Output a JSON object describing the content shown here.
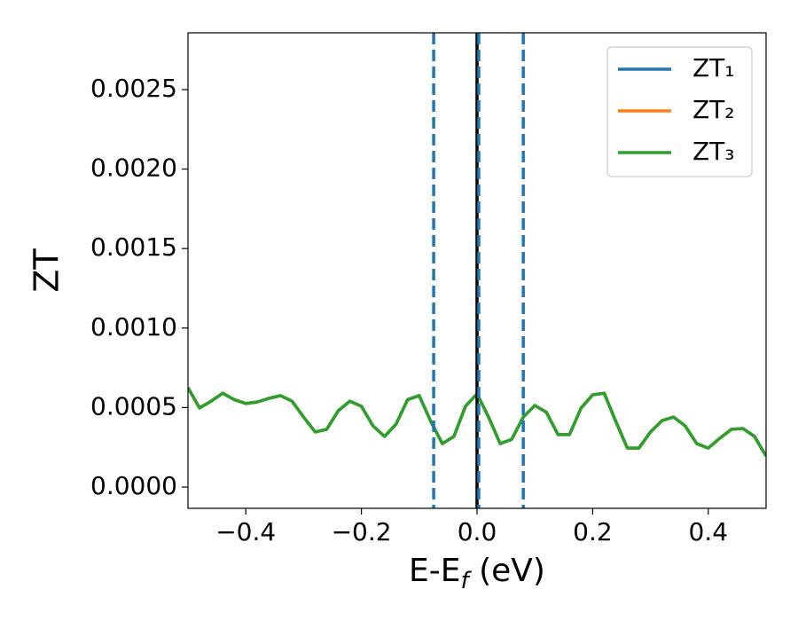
{
  "chart_data": {
    "type": "line",
    "xlabel": [
      "E-E",
      "f",
      " (eV)"
    ],
    "ylabel": "ZT",
    "x": [
      -0.5,
      -0.48,
      -0.46,
      -0.44,
      -0.42,
      -0.4,
      -0.38,
      -0.36,
      -0.34,
      -0.32,
      -0.3,
      -0.28,
      -0.26,
      -0.24,
      -0.22,
      -0.2,
      -0.18,
      -0.16,
      -0.14,
      -0.12,
      -0.1,
      -0.08,
      -0.06,
      -0.04,
      -0.02,
      0,
      0.02,
      0.04,
      0.06,
      0.08,
      0.1,
      0.12,
      0.14,
      0.16,
      0.18,
      0.2,
      0.22,
      0.24,
      0.26,
      0.28,
      0.3,
      0.32,
      0.34,
      0.36,
      0.38,
      0.4,
      0.42,
      0.44,
      0.46,
      0.48,
      0.5
    ],
    "series": [
      {
        "name": "ZT₁",
        "color": "#1f77b4",
        "values": [
          0.000625,
          0.000497,
          0.00054,
          0.00059,
          0.00055,
          0.000525,
          0.000535,
          0.000558,
          0.000575,
          0.00054,
          0.00044,
          0.000346,
          0.000363,
          0.00048,
          0.00054,
          0.000508,
          0.000385,
          0.000318,
          0.000396,
          0.00055,
          0.000575,
          0.000413,
          0.000273,
          0.000318,
          0.000508,
          0.000586,
          0.00044,
          0.000273,
          0.0003,
          0.00044,
          0.000513,
          0.00047,
          0.00033,
          0.00033,
          0.000497,
          0.00058,
          0.00059,
          0.000413,
          0.000245,
          0.000245,
          0.000346,
          0.000418,
          0.00044,
          0.000385,
          0.000273,
          0.000245,
          0.000307,
          0.000363,
          0.000368,
          0.000318,
          0.000195
        ]
      },
      {
        "name": "ZT₂",
        "color": "#ff7f0e",
        "values": [
          0.000625,
          0.000497,
          0.00054,
          0.00059,
          0.00055,
          0.000525,
          0.000535,
          0.000558,
          0.000575,
          0.00054,
          0.00044,
          0.000346,
          0.000363,
          0.00048,
          0.00054,
          0.000508,
          0.000385,
          0.000318,
          0.000396,
          0.00055,
          0.000575,
          0.000413,
          0.000273,
          0.000318,
          0.000508,
          0.000586,
          0.00044,
          0.000273,
          0.0003,
          0.00044,
          0.000513,
          0.00047,
          0.00033,
          0.00033,
          0.000497,
          0.00058,
          0.00059,
          0.000413,
          0.000245,
          0.000245,
          0.000346,
          0.000418,
          0.00044,
          0.000385,
          0.000273,
          0.000245,
          0.000307,
          0.000363,
          0.000368,
          0.000318,
          0.000195
        ]
      },
      {
        "name": "ZT₃",
        "color": "#2ca02c",
        "values": [
          0.000625,
          0.000497,
          0.00054,
          0.00059,
          0.00055,
          0.000525,
          0.000535,
          0.000558,
          0.000575,
          0.00054,
          0.00044,
          0.000346,
          0.000363,
          0.00048,
          0.00054,
          0.000508,
          0.000385,
          0.000318,
          0.000396,
          0.00055,
          0.000575,
          0.000413,
          0.000273,
          0.000318,
          0.000508,
          0.000586,
          0.00044,
          0.000273,
          0.0003,
          0.00044,
          0.000513,
          0.00047,
          0.00033,
          0.00033,
          0.000497,
          0.00058,
          0.00059,
          0.000413,
          0.000245,
          0.000245,
          0.000346,
          0.000418,
          0.00044,
          0.000385,
          0.000273,
          0.000245,
          0.000307,
          0.000363,
          0.000368,
          0.000318,
          0.000195
        ]
      }
    ],
    "vlines": [
      {
        "x": -0.075,
        "color": "#1f77b4",
        "style": "dashed"
      },
      {
        "x": 0,
        "color": "#000000",
        "style": "solid"
      },
      {
        "x": 0.003,
        "color": "#1f77b4",
        "style": "dashed"
      },
      {
        "x": 0.08,
        "color": "#1f77b4",
        "style": "dashed"
      }
    ],
    "xlim": [
      -0.5,
      0.5
    ],
    "ylim": [
      -0.000134,
      0.002857
    ],
    "xticks": [
      {
        "value": -0.4,
        "label": "−0.4"
      },
      {
        "value": -0.2,
        "label": "−0.2"
      },
      {
        "value": 0,
        "label": "0.0"
      },
      0.2,
      0.4
    ],
    "yticks": [
      {
        "value": 0,
        "label": "0.0000"
      },
      0.0005,
      {
        "value": 0.001,
        "label": "0.0010"
      },
      0.0015,
      {
        "value": 0.002,
        "label": "0.0020"
      },
      0.0025
    ],
    "legend": "upper right"
  }
}
